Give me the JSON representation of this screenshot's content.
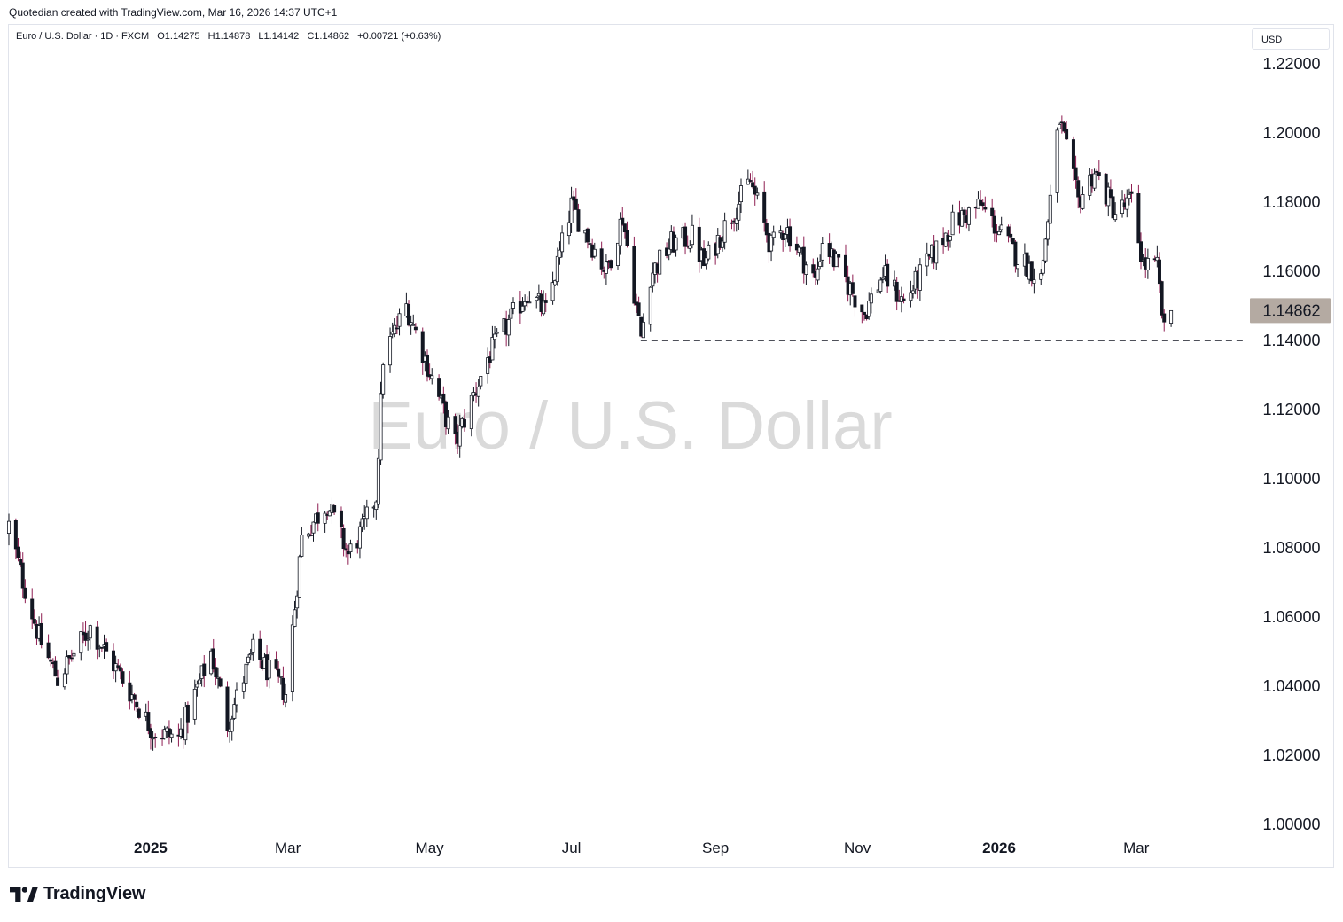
{
  "caption": "Quotedian created with TradingView.com, Mar 16, 2026 14:37 UTC+1",
  "legend": {
    "symbol": "Euro / U.S. Dollar",
    "interval": "1D",
    "source": "FXCM",
    "open": "O1.14275",
    "high": "H1.14878",
    "low": "L1.14142",
    "close": "C1.14862",
    "change": "+0.00721 (+0.63%)"
  },
  "currency_label": "USD",
  "watermark": "Euro / U.S. Dollar",
  "brand": {
    "name": "TradingView",
    "icon": "tradingview-logo-icon"
  },
  "colors": {
    "up": "#ffffff",
    "down": "#131722",
    "wick_down": "#8e1e52",
    "wick_up": "#131722",
    "last_price_tag": "#b4aaa2",
    "support_line": "#131722"
  },
  "chart_data": {
    "type": "candlestick",
    "title": "Euro / U.S. Dollar",
    "interval": "1D",
    "y_ticks": [
      "1.00000",
      "1.02000",
      "1.04000",
      "1.06000",
      "1.08000",
      "1.10000",
      "1.12000",
      "1.14000",
      "1.16000",
      "1.18000",
      "1.20000",
      "1.22000"
    ],
    "ylim": [
      1.0,
      1.22
    ],
    "x_ticks": [
      "2025",
      "Mar",
      "May",
      "Jul",
      "Sep",
      "Nov",
      "2026",
      "Mar"
    ],
    "x_tick_dates": [
      "2025-01-01",
      "2025-03-01",
      "2025-05-01",
      "2025-07-01",
      "2025-09-01",
      "2025-11-01",
      "2026-01-01",
      "2026-03-01"
    ],
    "x_range": [
      "2024-11-01",
      "2026-04-17"
    ],
    "last_price": "1.14862",
    "support_level": 1.14,
    "support_from": "2025-08-01",
    "anchors": [
      [
        "2024-11-01",
        1.0865
      ],
      [
        "2024-11-06",
        1.073
      ],
      [
        "2024-11-14",
        1.054
      ],
      [
        "2024-11-22",
        1.042
      ],
      [
        "2024-12-06",
        1.057
      ],
      [
        "2024-12-20",
        1.042
      ],
      [
        "2025-01-02",
        1.027
      ],
      [
        "2025-01-13",
        1.025
      ],
      [
        "2025-01-27",
        1.05
      ],
      [
        "2025-02-03",
        1.029
      ],
      [
        "2025-02-14",
        1.05
      ],
      [
        "2025-02-28",
        1.038
      ],
      [
        "2025-03-04",
        1.063
      ],
      [
        "2025-03-07",
        1.083
      ],
      [
        "2025-03-18",
        1.093
      ],
      [
        "2025-03-27",
        1.078
      ],
      [
        "2025-04-02",
        1.085
      ],
      [
        "2025-04-08",
        1.095
      ],
      [
        "2025-04-11",
        1.135
      ],
      [
        "2025-04-21",
        1.15
      ],
      [
        "2025-05-12",
        1.11
      ],
      [
        "2025-05-26",
        1.135
      ],
      [
        "2025-06-12",
        1.154
      ],
      [
        "2025-06-20",
        1.148
      ],
      [
        "2025-07-01",
        1.179
      ],
      [
        "2025-07-16",
        1.16
      ],
      [
        "2025-07-23",
        1.176
      ],
      [
        "2025-07-31",
        1.141
      ],
      [
        "2025-08-04",
        1.159
      ],
      [
        "2025-08-13",
        1.168
      ],
      [
        "2025-08-22",
        1.17
      ],
      [
        "2025-08-27",
        1.162
      ],
      [
        "2025-09-16",
        1.186
      ],
      [
        "2025-09-25",
        1.167
      ],
      [
        "2025-10-01",
        1.173
      ],
      [
        "2025-10-14",
        1.157
      ],
      [
        "2025-10-17",
        1.169
      ],
      [
        "2025-11-04",
        1.148
      ],
      [
        "2025-11-12",
        1.159
      ],
      [
        "2025-11-21",
        1.151
      ],
      [
        "2025-12-12",
        1.174
      ],
      [
        "2025-12-24",
        1.179
      ],
      [
        "2026-01-08",
        1.165
      ],
      [
        "2026-01-19",
        1.158
      ],
      [
        "2026-01-27",
        1.204
      ],
      [
        "2026-02-04",
        1.18
      ],
      [
        "2026-02-11",
        1.189
      ],
      [
        "2026-02-20",
        1.177
      ],
      [
        "2026-02-27",
        1.18
      ],
      [
        "2026-03-04",
        1.162
      ],
      [
        "2026-03-10",
        1.161
      ],
      [
        "2026-03-13",
        1.142
      ],
      [
        "2026-03-16",
        1.1486
      ]
    ]
  }
}
